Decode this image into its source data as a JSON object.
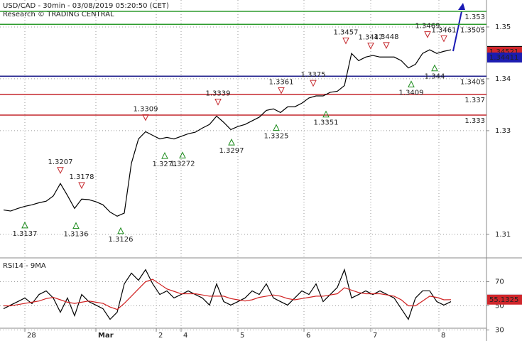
{
  "chart_data": [
    {
      "type": "line",
      "title": "USD/CAD - 30min - 03/08/2019 05:20:50 (CET)",
      "subtitle": "Research © TRADING CENTRAL",
      "xlim": [
        -0.5,
        68
      ],
      "ylim": [
        1.3056,
        1.3552
      ],
      "yticks": [
        1.31,
        1.33,
        1.34,
        1.35
      ],
      "grid": true,
      "series": [
        {
          "color": "#000000",
          "values": [
            1.3147,
            1.3145,
            1.315,
            1.3154,
            1.3157,
            1.3161,
            1.3164,
            1.3174,
            1.3198,
            1.3175,
            1.315,
            1.3168,
            1.3167,
            1.3163,
            1.3157,
            1.3143,
            1.3135,
            1.3141,
            1.3237,
            1.3284,
            1.3298,
            1.3291,
            1.3284,
            1.3287,
            1.3284,
            1.3289,
            1.3294,
            1.3297,
            1.3305,
            1.3312,
            1.3328,
            1.3316,
            1.3302,
            1.3308,
            1.3312,
            1.3319,
            1.3326,
            1.3339,
            1.3342,
            1.3335,
            1.3346,
            1.3346,
            1.3353,
            1.3363,
            1.3367,
            1.3367,
            1.3374,
            1.3376,
            1.3387,
            1.3449,
            1.3435,
            1.3442,
            1.3445,
            1.3442,
            1.3442,
            1.3442,
            1.3435,
            1.3421,
            1.3428,
            1.3449,
            1.3456,
            1.3449,
            1.3453,
            1.3456
          ]
        }
      ],
      "levels": [
        {
          "value": 1.353,
          "color": "#2e9b2e"
        },
        {
          "value": 1.3505,
          "color": "#2e9b2e"
        },
        {
          "value": 1.3405,
          "color": "#1c1c8a"
        },
        {
          "value": 1.337,
          "color": "#c4262b"
        },
        {
          "value": 1.333,
          "color": "#c4262b"
        }
      ],
      "pivots": [
        {
          "x": 3,
          "value": 1.3137,
          "dir": "up"
        },
        {
          "x": 8,
          "value": 1.3207,
          "dir": "down"
        },
        {
          "x": 10.2,
          "value": 1.3136,
          "dir": "up"
        },
        {
          "x": 11,
          "value": 1.3178,
          "dir": "down"
        },
        {
          "x": 16.5,
          "value": 1.3126,
          "dir": "up"
        },
        {
          "x": 20,
          "value": 1.3309,
          "dir": "down"
        },
        {
          "x": 22.7,
          "value": 1.3271,
          "dir": "up"
        },
        {
          "x": 25.2,
          "value": 1.3272,
          "dir": "up"
        },
        {
          "x": 30.2,
          "value": 1.3339,
          "dir": "down"
        },
        {
          "x": 32.1,
          "value": 1.3297,
          "dir": "up"
        },
        {
          "x": 39.1,
          "value": 1.3361,
          "dir": "down"
        },
        {
          "x": 38.4,
          "value": 1.3325,
          "dir": "up"
        },
        {
          "x": 43.6,
          "value": 1.3375,
          "dir": "down"
        },
        {
          "x": 45.4,
          "value": 1.3351,
          "dir": "up"
        },
        {
          "x": 48.2,
          "value": 1.3457,
          "dir": "down"
        },
        {
          "x": 51.7,
          "value": 1.3447,
          "dir": "down"
        },
        {
          "x": 53.9,
          "value": 1.3448,
          "dir": "down"
        },
        {
          "x": 57.4,
          "value": 1.3409,
          "dir": "up"
        },
        {
          "x": 59.7,
          "value": 1.3469,
          "dir": "down"
        },
        {
          "x": 60.7,
          "value": 1.344,
          "dir": "up"
        },
        {
          "x": 62,
          "value": 1.3461,
          "dir": "down"
        }
      ],
      "price_tags": [
        {
          "value": 1.34536,
          "color": "#000000",
          "text_color": "#ffffff"
        },
        {
          "value": 1.34521,
          "color": "#d0262b",
          "text_color": "#ffffff"
        },
        {
          "value": 1.34411,
          "color": "#1c1cb0",
          "text_color": "#ffffff"
        }
      ]
    },
    {
      "type": "line",
      "title": "RSI14 - 9MA",
      "xlim": [
        -0.5,
        68
      ],
      "ylim": [
        22,
        88
      ],
      "yticks": [
        30,
        50,
        70
      ],
      "grid": true,
      "xticks": [
        {
          "value": 3,
          "label": "28"
        },
        {
          "value": 13,
          "label": "Mar"
        },
        {
          "value": 21.5,
          "label": "2"
        },
        {
          "value": 25,
          "label": "4"
        },
        {
          "value": 33,
          "label": "5"
        },
        {
          "value": 42.3,
          "label": "6"
        },
        {
          "value": 51.7,
          "label": "7"
        },
        {
          "value": 61.3,
          "label": "8"
        }
      ],
      "series": [
        {
          "color": "#000000",
          "values": [
            47.6,
            50.6,
            53.5,
            56.5,
            51.8,
            59.4,
            62.4,
            56.5,
            44.7,
            56.5,
            41.8,
            59.4,
            53.5,
            50.6,
            47.6,
            38.8,
            44.7,
            68.2,
            77.1,
            71.2,
            80.0,
            68.2,
            59.4,
            62.4,
            56.5,
            59.4,
            62.4,
            59.4,
            56.5,
            50.6,
            68.2,
            53.5,
            50.6,
            53.5,
            56.5,
            62.4,
            59.4,
            68.2,
            56.5,
            53.5,
            50.6,
            56.5,
            62.4,
            59.4,
            68.2,
            53.5,
            59.4,
            65.3,
            80.0,
            56.5,
            59.4,
            62.4,
            59.4,
            62.4,
            59.4,
            56.5,
            47.6,
            38.8,
            56.5,
            62.4,
            62.4,
            53.5,
            50.6,
            53.5
          ]
        },
        {
          "color": "#d02020",
          "values": [
            50,
            50,
            51,
            52,
            53,
            54,
            56,
            57,
            55,
            53,
            52,
            53,
            54,
            53,
            52,
            49,
            47,
            52,
            58,
            64,
            70,
            72,
            68,
            64,
            62,
            60,
            60,
            60,
            59,
            58,
            58,
            58,
            56,
            55,
            54,
            55,
            57,
            58,
            59,
            58,
            56,
            55,
            56,
            57,
            58,
            58,
            59,
            60,
            65,
            63,
            61,
            60,
            60,
            60,
            59,
            58,
            55,
            50,
            50,
            54,
            58,
            57,
            55,
            55.1
          ]
        }
      ],
      "price_tags": [
        {
          "value": 55.8691,
          "color": "#dcecf8",
          "text_color": "#1c1c8a"
        },
        {
          "value": 55.1325,
          "color": "#d0262b",
          "text_color": "#ffffff"
        }
      ]
    }
  ]
}
